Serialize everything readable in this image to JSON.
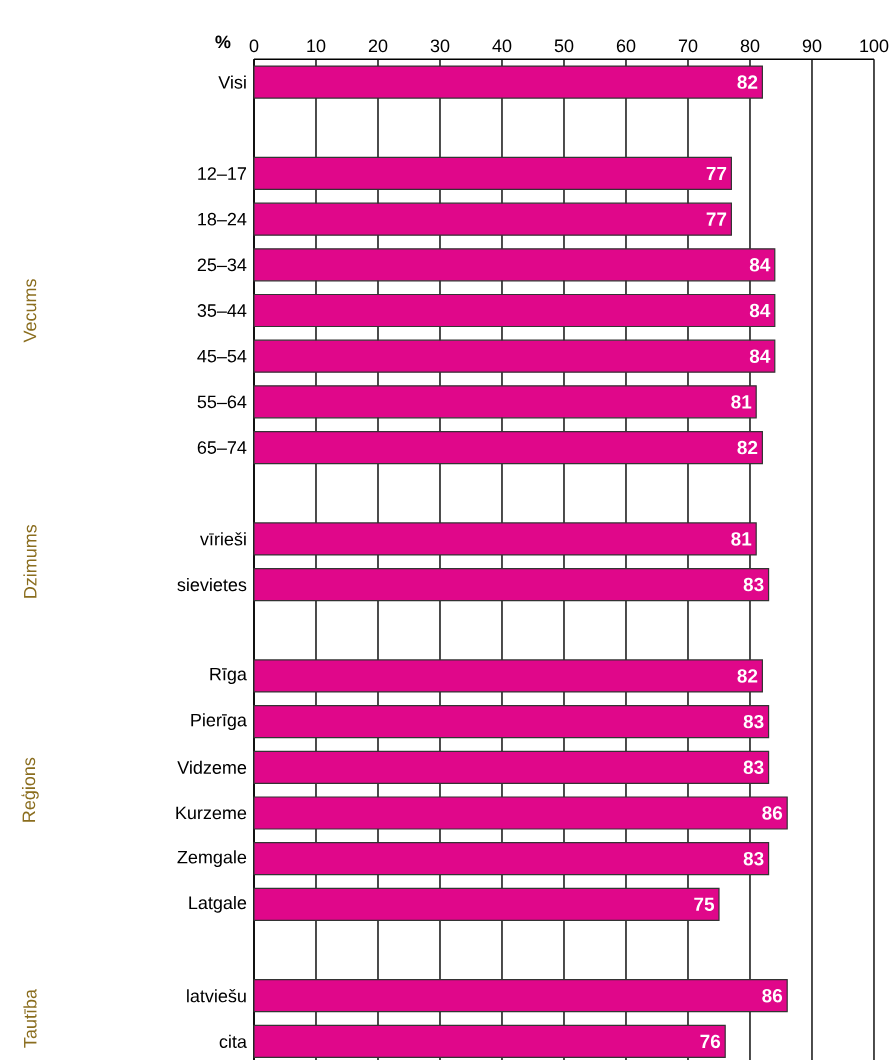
{
  "chart_data": {
    "type": "bar",
    "orientation": "horizontal",
    "xlabel": "%",
    "categories": [
      "Visi",
      null,
      "12–17",
      "18–24",
      "25–34",
      "35–44",
      "45–54",
      "55–64",
      "65–74",
      null,
      "vīrieši",
      "sievietes",
      null,
      "Rīga",
      "Pierīga",
      "Vidzeme",
      "Kurzeme",
      "Zemgale",
      "Latgale",
      null,
      "latviešu",
      "cita"
    ],
    "values": [
      82,
      null,
      77,
      77,
      84,
      84,
      84,
      81,
      82,
      null,
      81,
      83,
      null,
      82,
      83,
      83,
      86,
      83,
      75,
      null,
      86,
      76
    ],
    "color": "#e0078a",
    "data_labels": true,
    "grid": "x",
    "xlim": [
      0,
      100
    ],
    "xticks": [
      0,
      10,
      20,
      30,
      40,
      50,
      60,
      70,
      80,
      90,
      100
    ],
    "annotations": [
      "Vecums",
      "Dzimums",
      "Reģions",
      "Tautība"
    ]
  }
}
